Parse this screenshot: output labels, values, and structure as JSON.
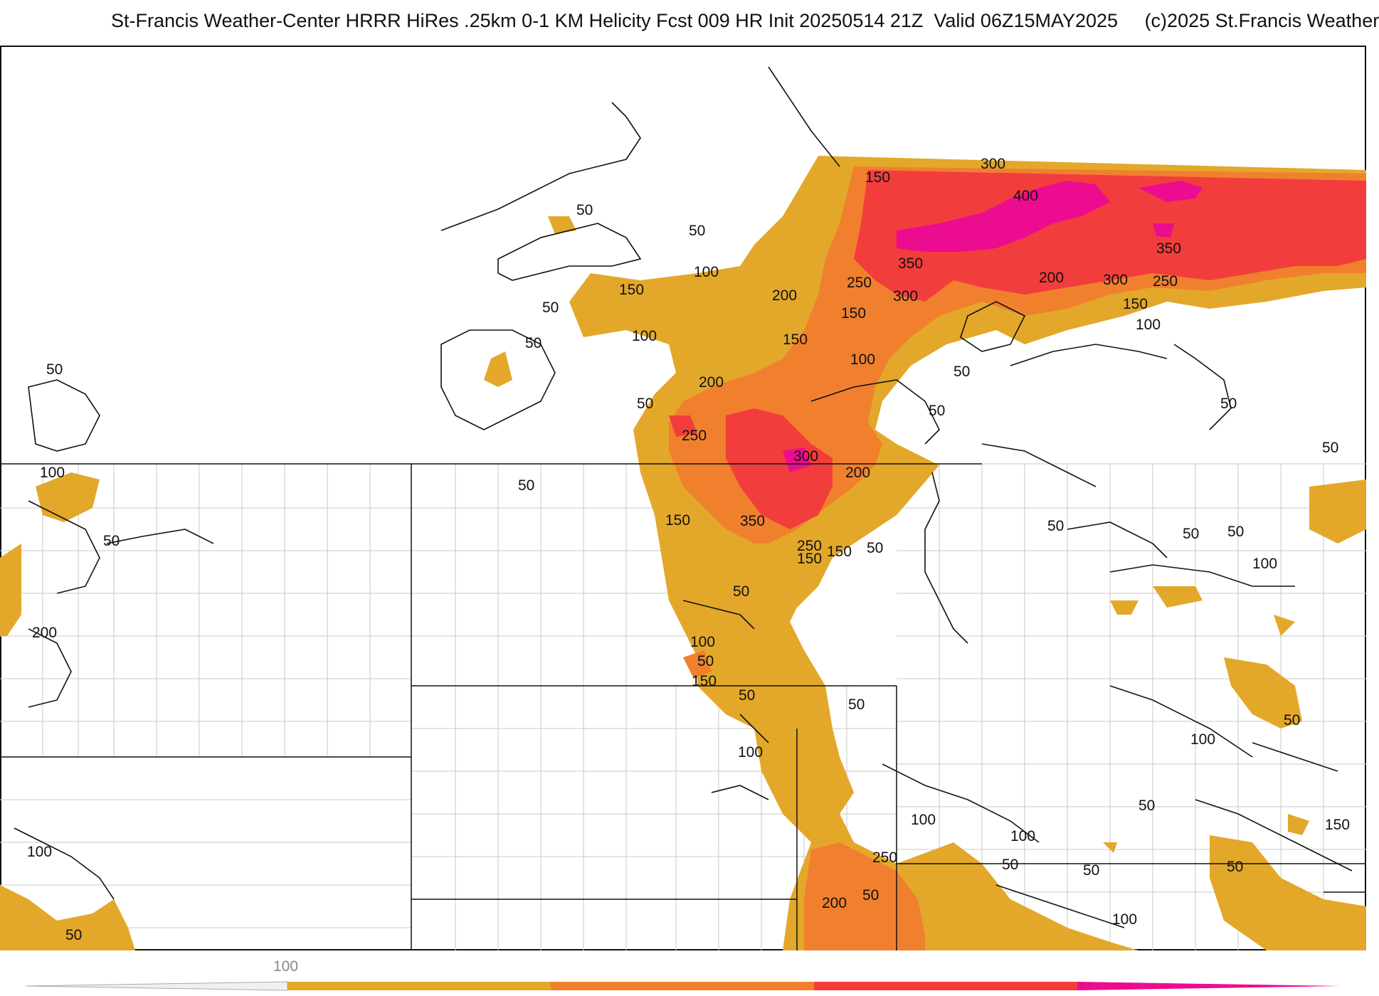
{
  "header": {
    "title": "St-Francis Weather-Center HRRR HiRes .25km 0-1 KM Helicity Fcst 009 HR Init 20250514 21Z  Valid 06Z15MAY2025     (c)2025 St.Francis Weather"
  },
  "colors": {
    "level_100": "#e3a82a",
    "level_200": "#f0802e",
    "level_300": "#f23d3d",
    "level_400": "#ec0c8f",
    "contour": "#111111",
    "state_border": "#111111",
    "county_border": "#c8c8c8",
    "background": "#ffffff"
  },
  "map": {
    "contour_labels": [
      {
        "id": "l01",
        "text": "150"
      },
      {
        "id": "l02",
        "text": "300"
      },
      {
        "id": "l03",
        "text": "400"
      },
      {
        "id": "l04",
        "text": "50"
      },
      {
        "id": "l05",
        "text": "50"
      },
      {
        "id": "l06",
        "text": "100"
      },
      {
        "id": "l07",
        "text": "150"
      },
      {
        "id": "l08",
        "text": "200"
      },
      {
        "id": "l09",
        "text": "250"
      },
      {
        "id": "l10",
        "text": "350"
      },
      {
        "id": "l11",
        "text": "350"
      },
      {
        "id": "l12",
        "text": "200"
      },
      {
        "id": "l13",
        "text": "300"
      },
      {
        "id": "l14",
        "text": "250"
      },
      {
        "id": "l15",
        "text": "300"
      },
      {
        "id": "l16",
        "text": "150"
      },
      {
        "id": "l17",
        "text": "100"
      },
      {
        "id": "l18",
        "text": "50"
      },
      {
        "id": "l19",
        "text": "100"
      },
      {
        "id": "l20",
        "text": "150"
      },
      {
        "id": "l21",
        "text": "50"
      },
      {
        "id": "l22",
        "text": "150"
      },
      {
        "id": "l23",
        "text": "100"
      },
      {
        "id": "l24",
        "text": "50"
      },
      {
        "id": "l25",
        "text": "50"
      },
      {
        "id": "l26",
        "text": "200"
      },
      {
        "id": "l27",
        "text": "50"
      },
      {
        "id": "l28",
        "text": "50"
      },
      {
        "id": "l29",
        "text": "50"
      },
      {
        "id": "l30",
        "text": "250"
      },
      {
        "id": "l31",
        "text": "300"
      },
      {
        "id": "l32",
        "text": "200"
      },
      {
        "id": "l33",
        "text": "50"
      },
      {
        "id": "l34",
        "text": "100"
      },
      {
        "id": "l35",
        "text": "50"
      },
      {
        "id": "l36",
        "text": "150"
      },
      {
        "id": "l37",
        "text": "350"
      },
      {
        "id": "l38",
        "text": "250"
      },
      {
        "id": "l39",
        "text": "150"
      },
      {
        "id": "l40",
        "text": "50"
      },
      {
        "id": "l41",
        "text": "50"
      },
      {
        "id": "l42",
        "text": "50"
      },
      {
        "id": "l43",
        "text": "50"
      },
      {
        "id": "l44",
        "text": "50"
      },
      {
        "id": "l45",
        "text": "100"
      },
      {
        "id": "l46",
        "text": "150"
      },
      {
        "id": "l47",
        "text": "50"
      },
      {
        "id": "l48",
        "text": "200"
      },
      {
        "id": "l49",
        "text": "100"
      },
      {
        "id": "l50",
        "text": "50"
      },
      {
        "id": "l51",
        "text": "150"
      },
      {
        "id": "l52",
        "text": "50"
      },
      {
        "id": "l53",
        "text": "50"
      },
      {
        "id": "l54",
        "text": "100"
      },
      {
        "id": "l55",
        "text": "50"
      },
      {
        "id": "l56",
        "text": "100"
      },
      {
        "id": "l57",
        "text": "100"
      },
      {
        "id": "l58",
        "text": "50"
      },
      {
        "id": "l59",
        "text": "50"
      },
      {
        "id": "l60",
        "text": "100"
      },
      {
        "id": "l61",
        "text": "50"
      },
      {
        "id": "l62",
        "text": "150"
      },
      {
        "id": "l63",
        "text": "250"
      },
      {
        "id": "l64",
        "text": "200"
      },
      {
        "id": "l65",
        "text": "50"
      },
      {
        "id": "l66",
        "text": "50"
      },
      {
        "id": "l67",
        "text": "100"
      },
      {
        "id": "l68",
        "text": "50"
      },
      {
        "id": "l69",
        "text": "100"
      }
    ]
  },
  "legend": {
    "tick_label": "100",
    "bins": [
      100,
      200,
      300,
      400
    ]
  }
}
